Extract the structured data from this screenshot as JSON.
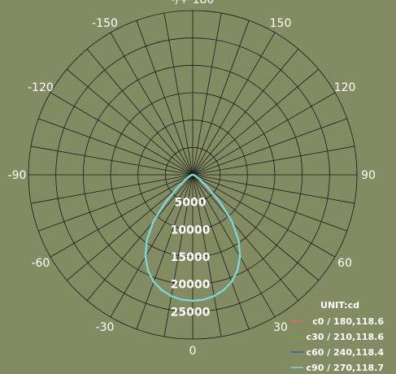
{
  "chart_data": {
    "type": "polar",
    "angle_labels": [
      {
        "deg": 180,
        "text": "-/+ 180"
      },
      {
        "deg": -150,
        "text": "-150"
      },
      {
        "deg": 150,
        "text": "150"
      },
      {
        "deg": -120,
        "text": "-120"
      },
      {
        "deg": 120,
        "text": "120"
      },
      {
        "deg": -90,
        "text": "-90"
      },
      {
        "deg": 90,
        "text": "90"
      },
      {
        "deg": -60,
        "text": "-60"
      },
      {
        "deg": 60,
        "text": "60"
      },
      {
        "deg": -30,
        "text": "-30"
      },
      {
        "deg": 30,
        "text": "30"
      },
      {
        "deg": 0,
        "text": "0"
      }
    ],
    "radial_ticks": [
      5000,
      10000,
      15000,
      20000,
      25000
    ],
    "radial_tick_labels": [
      "5000",
      "10000",
      "15000",
      "20000",
      "25000"
    ],
    "rmax": 30000,
    "legend_title": "UNIT:cd",
    "series": [
      {
        "name": "c0 / 180,118.6",
        "color": "#e06a50",
        "angles": [
          -90,
          -80,
          -70,
          -60,
          -50,
          -45,
          -40,
          -35,
          -30,
          -25,
          -20,
          -15,
          -10,
          -5,
          0,
          5,
          10,
          15,
          20,
          25,
          30,
          35,
          40,
          45,
          50,
          60,
          70,
          80,
          90
        ],
        "values": [
          0,
          200,
          400,
          1200,
          3500,
          7000,
          11200,
          14600,
          17300,
          19300,
          20800,
          21800,
          22500,
          22900,
          23000,
          22900,
          22500,
          21800,
          20800,
          19300,
          17300,
          14600,
          11200,
          7000,
          3500,
          1200,
          400,
          200,
          0
        ]
      },
      {
        "name": "c30 / 210,118.6",
        "color": "#6fa33c",
        "angles": [
          -90,
          -80,
          -70,
          -60,
          -50,
          -45,
          -40,
          -35,
          -30,
          -25,
          -20,
          -15,
          -10,
          -5,
          0,
          5,
          10,
          15,
          20,
          25,
          30,
          35,
          40,
          45,
          50,
          60,
          70,
          80,
          90
        ],
        "values": [
          0,
          200,
          400,
          1200,
          3500,
          7000,
          11200,
          14600,
          17300,
          19300,
          20800,
          21800,
          22500,
          22900,
          23000,
          22900,
          22500,
          21800,
          20800,
          19300,
          17300,
          14600,
          11200,
          7000,
          3500,
          1200,
          400,
          200,
          0
        ]
      },
      {
        "name": "c60 / 240,118.4",
        "color": "#3a5da8",
        "angles": [
          -90,
          -80,
          -70,
          -60,
          -50,
          -45,
          -40,
          -35,
          -30,
          -25,
          -20,
          -15,
          -10,
          -5,
          0,
          5,
          10,
          15,
          20,
          25,
          30,
          35,
          40,
          45,
          50,
          60,
          70,
          80,
          90
        ],
        "values": [
          0,
          200,
          400,
          1200,
          3500,
          7000,
          11200,
          14600,
          17300,
          19300,
          20800,
          21800,
          22500,
          22900,
          23000,
          22900,
          22500,
          21800,
          20800,
          19300,
          17300,
          14600,
          11200,
          7000,
          3500,
          1200,
          400,
          200,
          0
        ]
      },
      {
        "name": "c90 / 270,118.7",
        "color": "#7fd8d2",
        "angles": [
          -90,
          -80,
          -70,
          -60,
          -50,
          -45,
          -40,
          -35,
          -30,
          -25,
          -20,
          -15,
          -10,
          -5,
          0,
          5,
          10,
          15,
          20,
          25,
          30,
          35,
          40,
          45,
          50,
          60,
          70,
          80,
          90
        ],
        "values": [
          0,
          200,
          400,
          1200,
          3500,
          7000,
          11200,
          14600,
          17300,
          19300,
          20800,
          21800,
          22500,
          22900,
          23000,
          22900,
          22500,
          21800,
          20800,
          19300,
          17300,
          14600,
          11200,
          7000,
          3500,
          1200,
          400,
          200,
          0
        ]
      }
    ]
  }
}
